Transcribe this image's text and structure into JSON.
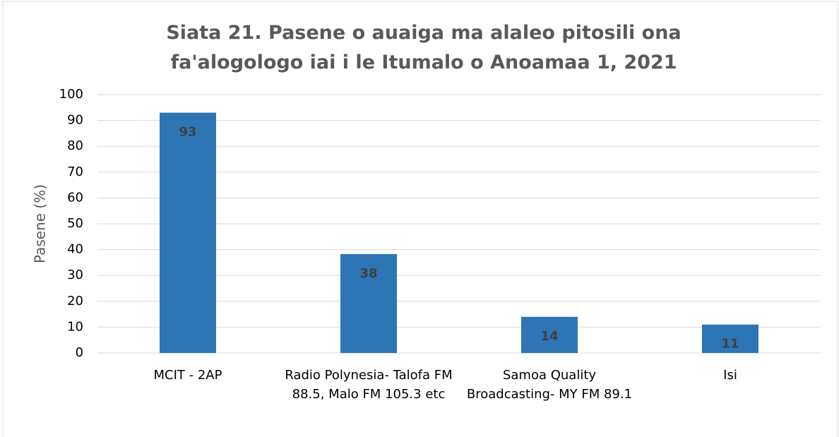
{
  "chart_data": {
    "type": "bar",
    "title": "Siata 21. Pasene o auaiga ma alaleo pitosili ona fa'alogologo iai i le Itumalo o Anoamaa 1, 2021",
    "ylabel": "Pasene (%)",
    "categories": [
      "MCIT - 2AP",
      "Radio Polynesia- Talofa FM 88.5, Malo FM 105.3 etc",
      "Samoa Quality Broadcasting- MY FM 89.1",
      "Isi"
    ],
    "values": [
      93,
      38.3,
      14,
      11
    ],
    "value_labels": [
      "93",
      "38",
      "14",
      "11"
    ],
    "color": "#2e75b6",
    "ylim": [
      0,
      100
    ],
    "yticks": [
      0,
      10,
      20,
      30,
      40,
      50,
      60,
      70,
      80,
      90,
      100
    ],
    "grid": true
  }
}
